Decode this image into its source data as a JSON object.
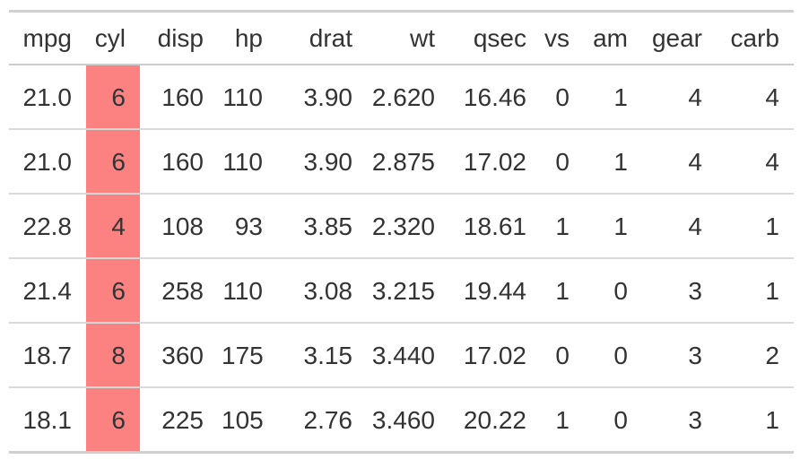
{
  "chart_data": {
    "type": "table",
    "title": "",
    "columns": [
      "mpg",
      "cyl",
      "disp",
      "hp",
      "drat",
      "wt",
      "qsec",
      "vs",
      "am",
      "gear",
      "carb"
    ],
    "rows": [
      [
        "21.0",
        "6",
        "160",
        "110",
        "3.90",
        "2.620",
        "16.46",
        "0",
        "1",
        "4",
        "4"
      ],
      [
        "21.0",
        "6",
        "160",
        "110",
        "3.90",
        "2.875",
        "17.02",
        "0",
        "1",
        "4",
        "4"
      ],
      [
        "22.8",
        "4",
        "108",
        "93",
        "3.85",
        "2.320",
        "18.61",
        "1",
        "1",
        "4",
        "1"
      ],
      [
        "21.4",
        "6",
        "258",
        "110",
        "3.08",
        "3.215",
        "19.44",
        "1",
        "0",
        "3",
        "1"
      ],
      [
        "18.7",
        "8",
        "360",
        "175",
        "3.15",
        "3.440",
        "17.02",
        "0",
        "0",
        "3",
        "2"
      ],
      [
        "18.1",
        "6",
        "225",
        "105",
        "2.76",
        "3.460",
        "20.22",
        "1",
        "0",
        "3",
        "1"
      ]
    ],
    "highlight": {
      "column": "cyl",
      "column_index": 1,
      "background": "#fc8181",
      "applies_to": "body-cells-only"
    },
    "colors": {
      "text": "#333333",
      "background": "#ffffff",
      "border_outer": "#d0d0d0",
      "border_header": "#cbcbcb",
      "border_row": "#d9d9d9"
    },
    "layout": {
      "alignment": "right",
      "grid": "horizontal-rules-only",
      "header_weight": "normal"
    }
  }
}
